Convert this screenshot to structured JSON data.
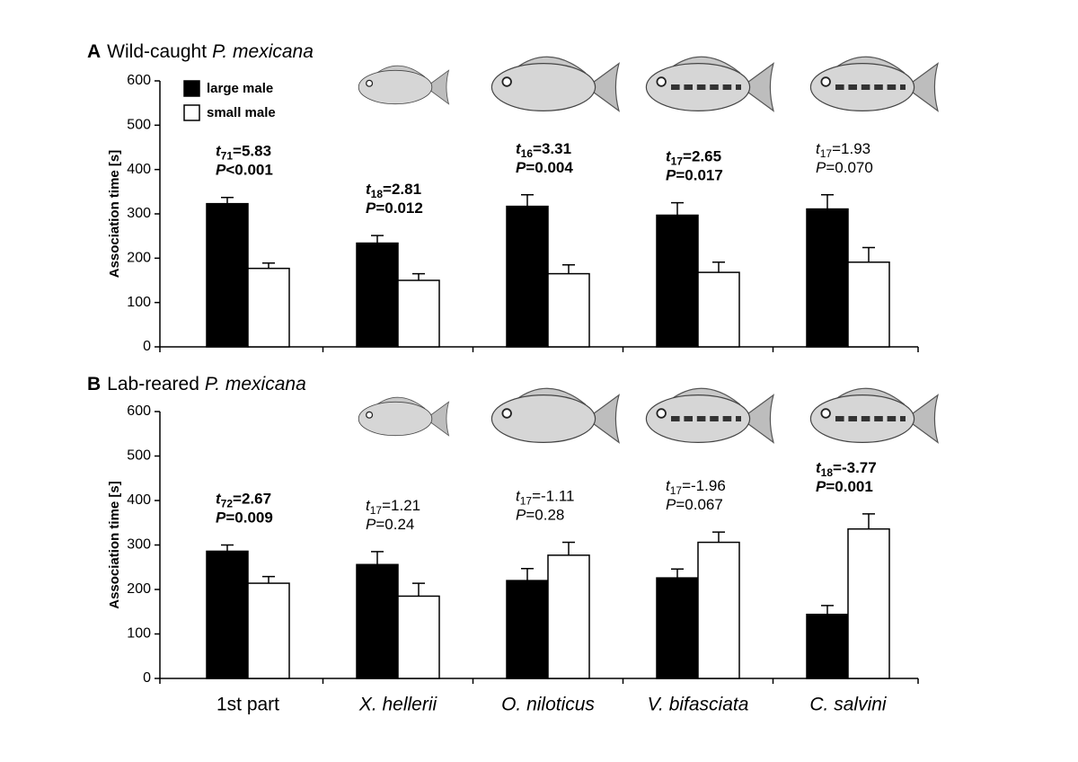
{
  "chart_data": [
    {
      "type": "bar",
      "panel_label": "A",
      "title": [
        "Wild-caught",
        "P. mexicana"
      ],
      "ylabel": "Association time [s]",
      "categories": [
        null,
        null,
        null,
        null,
        null
      ],
      "ylim": [
        0,
        600
      ],
      "yticks": [
        0,
        100,
        200,
        300,
        400,
        500,
        600
      ],
      "legend": "top-left",
      "series": [
        {
          "name": "large male",
          "color": "#000000",
          "values": [
            323,
            234,
            317,
            297,
            311
          ],
          "errors": [
            14,
            17,
            26,
            28,
            32
          ]
        },
        {
          "name": "small male",
          "color": "#ffffff",
          "values": [
            177,
            150,
            165,
            168,
            191
          ],
          "errors": [
            12,
            15,
            20,
            23,
            33
          ]
        }
      ],
      "annotations": [
        {
          "stat": "t",
          "df": "71",
          "stat_value": "=5.83",
          "p_label": "P",
          "p_value": "<0.001",
          "bold": true
        },
        {
          "stat": "t",
          "df": "18",
          "stat_value": "=2.81",
          "p_label": "P",
          "p_value": "=0.012",
          "bold": true
        },
        {
          "stat": "t",
          "df": "16",
          "stat_value": "=3.31",
          "p_label": "P",
          "p_value": "=0.004",
          "bold": true
        },
        {
          "stat": "t",
          "df": "17",
          "stat_value": "=2.65",
          "p_label": "P",
          "p_value": "=0.017",
          "bold": true
        },
        {
          "stat": "t",
          "df": "17",
          "stat_value": "=1.93",
          "p_label": "P",
          "p_value": "=0.070",
          "bold": false
        }
      ]
    },
    {
      "type": "bar",
      "panel_label": "B",
      "title": [
        "Lab-reared",
        "P. mexicana"
      ],
      "ylabel": "Association time [s]",
      "categories": [
        "1st part",
        "X. hellerii",
        "O. niloticus",
        "V. bifasciata",
        "C. salvini"
      ],
      "category_italic": [
        false,
        true,
        true,
        true,
        true
      ],
      "ylim": [
        0,
        600
      ],
      "yticks": [
        0,
        100,
        200,
        300,
        400,
        500,
        600
      ],
      "series": [
        {
          "color": "#000000",
          "values": [
            286,
            256,
            220,
            226,
            144
          ],
          "errors": [
            14,
            29,
            27,
            20,
            20
          ]
        },
        {
          "color": "#ffffff",
          "values": [
            214,
            185,
            277,
            306,
            336
          ],
          "errors": [
            15,
            29,
            29,
            23,
            34
          ]
        }
      ],
      "annotations": [
        {
          "stat": "t",
          "df": "72",
          "stat_value": "=2.67",
          "p_label": "P",
          "p_value": "=0.009",
          "bold": true
        },
        {
          "stat": "t",
          "df": "17",
          "stat_value": "=1.21",
          "p_label": "P",
          "p_value": "=0.24",
          "bold": false
        },
        {
          "stat": "t",
          "df": "17",
          "stat_value": "=-1.11",
          "p_label": "P",
          "p_value": "=0.28",
          "bold": false
        },
        {
          "stat": "t",
          "df": "17",
          "stat_value": "=-1.96",
          "p_label": "P",
          "p_value": "=0.067",
          "bold": false
        },
        {
          "stat": "t",
          "df": "18",
          "stat_value": "=-3.77",
          "p_label": "P",
          "p_value": "=0.001",
          "bold": true
        }
      ]
    }
  ]
}
